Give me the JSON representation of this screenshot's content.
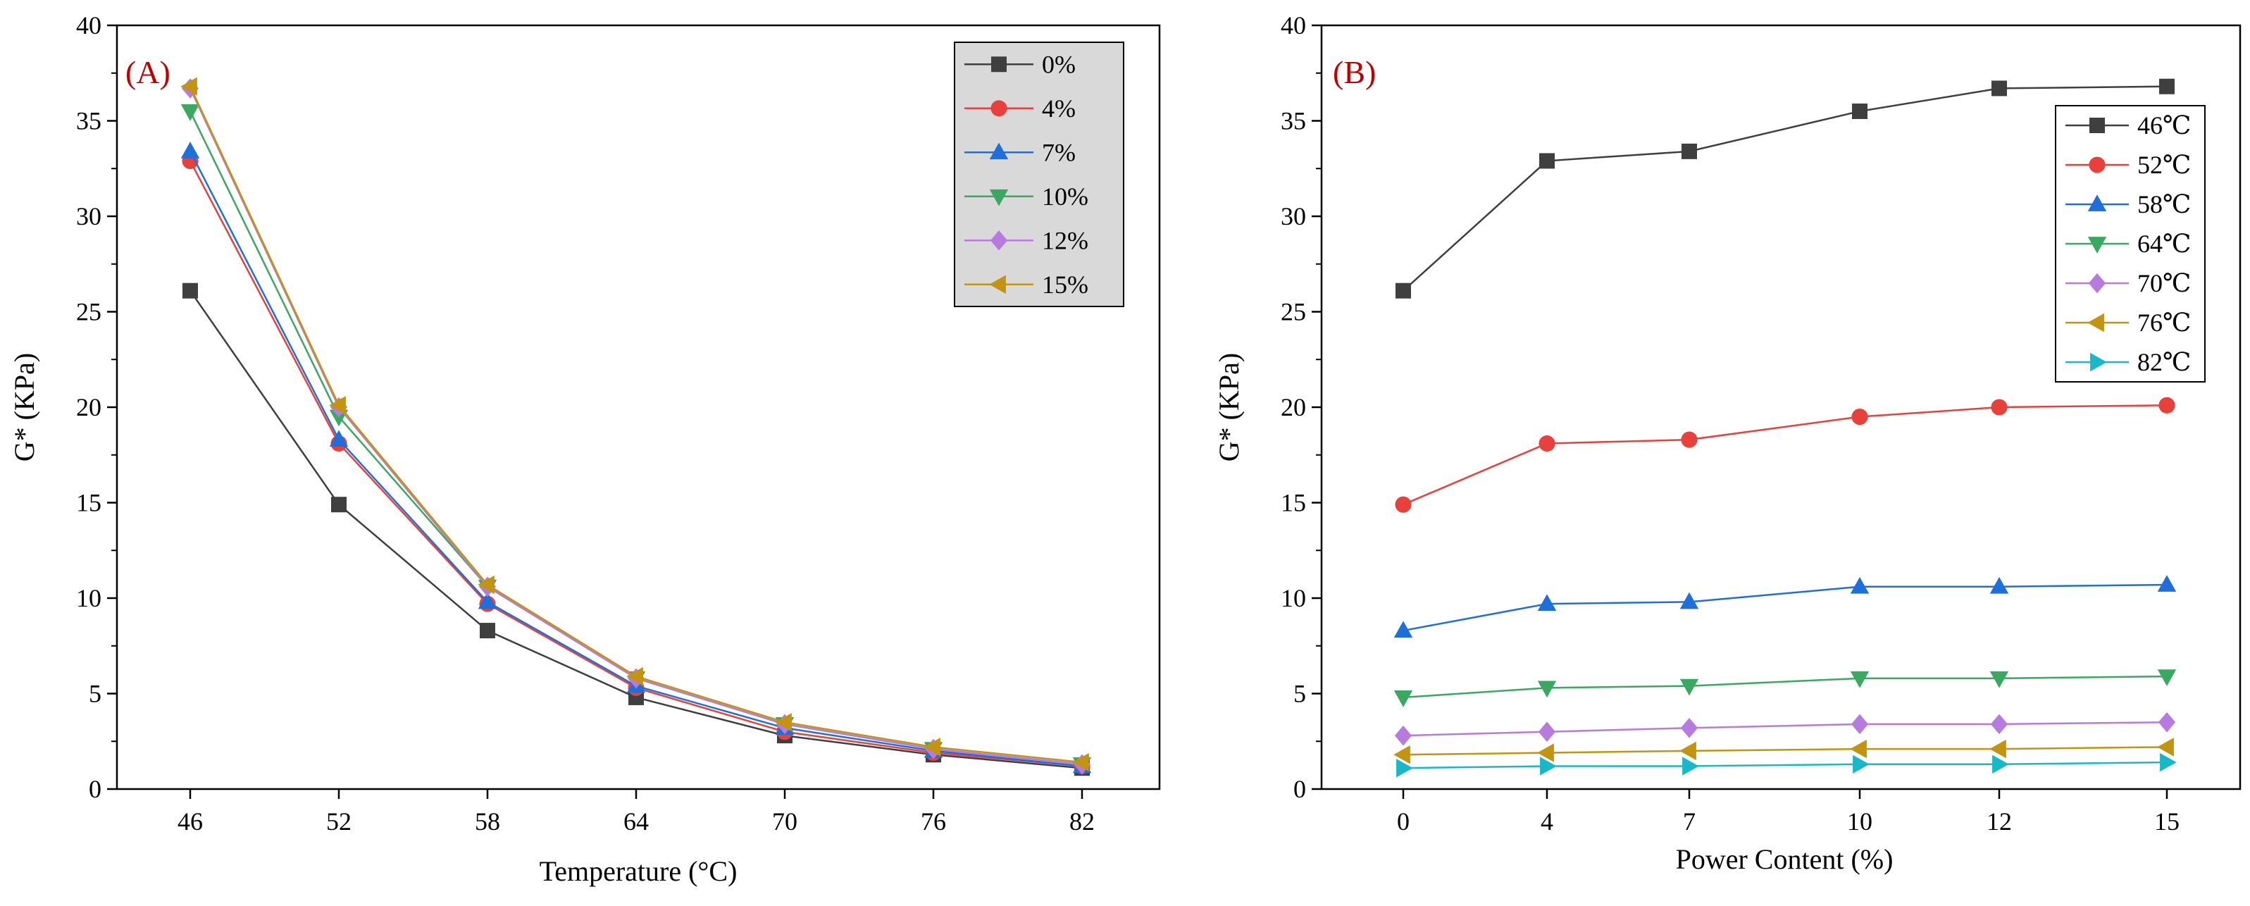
{
  "chart_data": [
    {
      "panel": "(A)",
      "type": "line",
      "xlabel": "Temperature (°C)",
      "ylabel": "G* (KPa)",
      "categories": [
        "46",
        "52",
        "58",
        "64",
        "70",
        "76",
        "82"
      ],
      "x": [
        46,
        52,
        58,
        64,
        70,
        76,
        82
      ],
      "ylim": [
        0,
        40
      ],
      "yticks": [
        "0",
        "5",
        "10",
        "15",
        "20",
        "25",
        "30",
        "35",
        "40"
      ],
      "legend_position": "top-right",
      "series": [
        {
          "name": "0%",
          "color": "#3f3f3f",
          "marker": "square",
          "values": [
            26.1,
            14.9,
            8.3,
            4.8,
            2.8,
            1.8,
            1.1
          ]
        },
        {
          "name": "4%",
          "color": "#e8403a",
          "marker": "circle",
          "values": [
            32.9,
            18.1,
            9.7,
            5.3,
            3.0,
            1.9,
            1.2
          ]
        },
        {
          "name": "7%",
          "color": "#1f6fdb",
          "marker": "triangle-up",
          "values": [
            33.4,
            18.3,
            9.8,
            5.4,
            3.2,
            2.0,
            1.2
          ]
        },
        {
          "name": "10%",
          "color": "#3aa860",
          "marker": "triangle-down",
          "values": [
            35.5,
            19.5,
            10.6,
            5.8,
            3.4,
            2.1,
            1.3
          ]
        },
        {
          "name": "12%",
          "color": "#b77be0",
          "marker": "diamond",
          "values": [
            36.7,
            20.0,
            10.6,
            5.8,
            3.4,
            2.1,
            1.3
          ]
        },
        {
          "name": "15%",
          "color": "#c29410",
          "marker": "triangle-left",
          "values": [
            36.8,
            20.1,
            10.7,
            5.9,
            3.5,
            2.2,
            1.4
          ]
        }
      ]
    },
    {
      "panel": "(B)",
      "type": "line",
      "xlabel": "Power Content (%)",
      "ylabel": "G* (KPa)",
      "categories": [
        "0",
        "4",
        "7",
        "10",
        "12",
        "15"
      ],
      "ylim": [
        0,
        40
      ],
      "yticks": [
        "0",
        "5",
        "10",
        "15",
        "20",
        "25",
        "30",
        "35",
        "40"
      ],
      "legend_position": "top-right",
      "series": [
        {
          "name": "46℃",
          "color": "#3f3f3f",
          "marker": "square",
          "values": [
            26.1,
            32.9,
            33.4,
            35.5,
            36.7,
            36.8
          ]
        },
        {
          "name": "52℃",
          "color": "#e8403a",
          "marker": "circle",
          "values": [
            14.9,
            18.1,
            18.3,
            19.5,
            20.0,
            20.1
          ]
        },
        {
          "name": "58℃",
          "color": "#1f6fdb",
          "marker": "triangle-up",
          "values": [
            8.3,
            9.7,
            9.8,
            10.6,
            10.6,
            10.7
          ]
        },
        {
          "name": "64℃",
          "color": "#3aa860",
          "marker": "triangle-down",
          "values": [
            4.8,
            5.3,
            5.4,
            5.8,
            5.8,
            5.9
          ]
        },
        {
          "name": "70℃",
          "color": "#b77be0",
          "marker": "diamond",
          "values": [
            2.8,
            3.0,
            3.2,
            3.4,
            3.4,
            3.5
          ]
        },
        {
          "name": "76℃",
          "color": "#c29410",
          "marker": "triangle-left",
          "values": [
            1.8,
            1.9,
            2.0,
            2.1,
            2.1,
            2.2
          ]
        },
        {
          "name": "82℃",
          "color": "#19b8c8",
          "marker": "triangle-right",
          "values": [
            1.1,
            1.2,
            1.2,
            1.3,
            1.3,
            1.4
          ]
        }
      ]
    }
  ]
}
